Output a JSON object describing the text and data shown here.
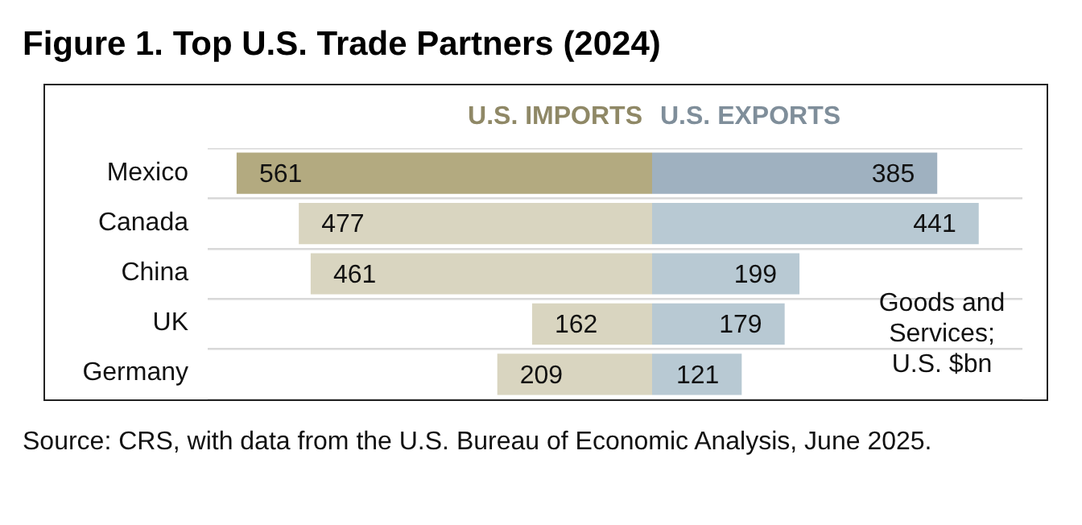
{
  "chart_data": [
    {
      "type": "bar",
      "title": "Figure 1. Top U.S. Trade Partners (2024)",
      "orientation": "horizontal",
      "categories": [
        "Mexico",
        "Canada",
        "China",
        "UK",
        "Germany"
      ],
      "series": [
        {
          "name": "U.S. IMPORTS",
          "colors": [
            "#b3aa80",
            "#d9d5c0",
            "#d9d5c0",
            "#d9d5c0",
            "#d9d5c0"
          ],
          "values": [
            561,
            477,
            461,
            162,
            209
          ]
        }
      ],
      "xlim": [
        600,
        0
      ],
      "data_labels": true,
      "grid": "y",
      "tick_labels": "y",
      "legend": "top right",
      "annotations": [
        "Source: CRS, with data from the U.S. Bureau of Economic Analysis, June 2025."
      ]
    },
    {
      "type": "bar",
      "orientation": "horizontal",
      "categories": [
        null,
        null,
        null,
        null,
        null
      ],
      "series": [
        {
          "name": "U.S. EXPORTS",
          "colors": [
            "#9fb1c0",
            "#b8c9d3",
            "#b8c9d3",
            "#b8c9d3",
            "#b8c9d3"
          ],
          "values": [
            385,
            441,
            199,
            179,
            121
          ]
        }
      ],
      "xlim": [
        0,
        500
      ],
      "data_labels": true,
      "grid": "y",
      "tick_labels": false,
      "legend": "top left",
      "annotations": [
        "Goods and Services; U.S. $bn"
      ]
    }
  ]
}
